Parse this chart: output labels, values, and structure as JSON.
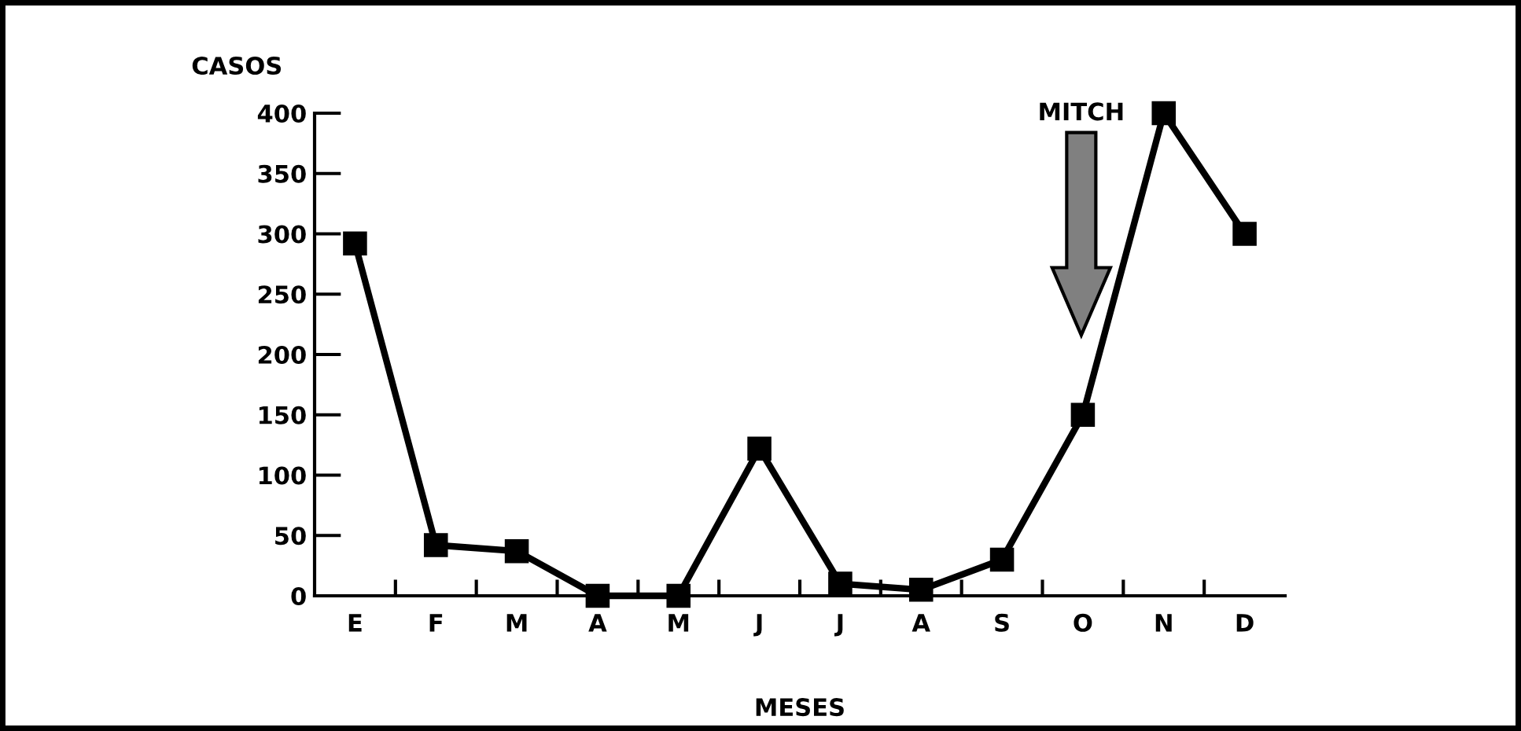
{
  "chart_data": {
    "type": "line",
    "xlabel": "MESES",
    "ylabel": "CASOS",
    "categories": [
      "E",
      "F",
      "M",
      "A",
      "M",
      "J",
      "J",
      "A",
      "S",
      "O",
      "N",
      "D"
    ],
    "series": [
      {
        "color": "#000000",
        "values": [
          292,
          42,
          37,
          0,
          0,
          122,
          10,
          5,
          30,
          150,
          400,
          300
        ]
      }
    ],
    "ylim": [
      0,
      400
    ],
    "yticks": [
      0,
      50,
      100,
      150,
      200,
      250,
      300,
      350,
      400
    ],
    "marker": "square",
    "line_style": "solid",
    "grid": false,
    "legend": false,
    "annotations": [
      "MITCH"
    ]
  }
}
